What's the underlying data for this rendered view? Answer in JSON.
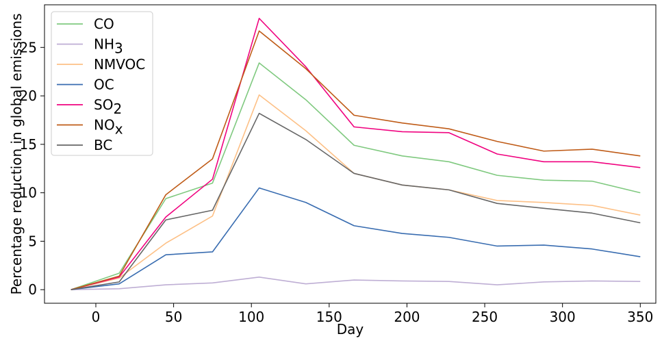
{
  "chart_data": {
    "type": "line",
    "xlabel": "Day",
    "ylabel": "Percentage reduction in global emissions",
    "xlim": [
      -33,
      360
    ],
    "ylim": [
      -1.4,
      29.4
    ],
    "xticks": [
      0,
      50,
      100,
      150,
      200,
      250,
      300,
      350
    ],
    "yticks": [
      0,
      5,
      10,
      15,
      20,
      25
    ],
    "legend_position": "top-left",
    "x": [
      -16,
      15,
      45,
      75,
      105,
      135,
      166,
      197,
      227,
      258,
      288,
      319,
      350
    ],
    "series": [
      {
        "name": "CO",
        "sub": "",
        "color": "#7fc97f",
        "values": [
          0,
          1.7,
          9.4,
          11.0,
          23.4,
          19.6,
          14.9,
          13.8,
          13.2,
          11.8,
          11.3,
          11.2,
          10.0
        ]
      },
      {
        "name": "NH",
        "sub": "3",
        "color": "#beaed4",
        "values": [
          0,
          0.1,
          0.5,
          0.7,
          1.3,
          0.6,
          1.0,
          0.9,
          0.85,
          0.5,
          0.8,
          0.9,
          0.85
        ]
      },
      {
        "name": "NMVOC",
        "sub": "",
        "color": "#fdc086",
        "values": [
          0,
          1.2,
          4.8,
          7.6,
          20.1,
          16.4,
          12.0,
          10.8,
          10.3,
          9.2,
          9.0,
          8.7,
          7.7
        ]
      },
      {
        "name": "OC",
        "sub": "",
        "color": "#386cb0",
        "values": [
          0,
          0.6,
          3.6,
          3.9,
          10.5,
          9.0,
          6.6,
          5.8,
          5.4,
          4.5,
          4.6,
          4.2,
          3.4
        ]
      },
      {
        "name": "SO",
        "sub": "2",
        "color": "#f0027f",
        "values": [
          0,
          1.3,
          7.5,
          11.4,
          28.0,
          23.0,
          16.8,
          16.3,
          16.2,
          14.0,
          13.2,
          13.2,
          12.6
        ]
      },
      {
        "name": "NO",
        "sub": "x",
        "color": "#bf5b17",
        "values": [
          0,
          1.4,
          9.8,
          13.5,
          26.7,
          22.8,
          18.0,
          17.2,
          16.6,
          15.3,
          14.3,
          14.5,
          13.8
        ]
      },
      {
        "name": "BC",
        "sub": "",
        "color": "#666666",
        "values": [
          0,
          0.8,
          7.2,
          8.2,
          18.2,
          15.5,
          12.0,
          10.8,
          10.3,
          8.9,
          8.4,
          7.9,
          6.9
        ]
      }
    ]
  }
}
